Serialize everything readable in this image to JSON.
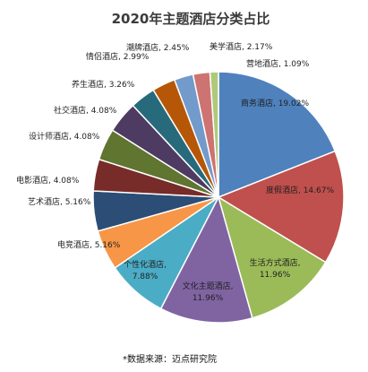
{
  "chart_data": {
    "type": "pie",
    "title": "2020年主题酒店分类占比",
    "source_note": "*数据来源：迈点研究院",
    "slices": [
      {
        "label": "商务酒店",
        "value": 19.02,
        "value_text": "19.02%",
        "color": "#4f81bd"
      },
      {
        "label": "度假酒店",
        "value": 14.67,
        "value_text": "14.67%",
        "color": "#c0504d"
      },
      {
        "label": "生活方式酒店",
        "value": 11.96,
        "value_text": "11.96%",
        "color": "#9bbb59"
      },
      {
        "label": "文化主题酒店",
        "value": 11.96,
        "value_text": "11.96%",
        "color": "#8064a2"
      },
      {
        "label": "个性化酒店",
        "value": 7.88,
        "value_text": "7.88%",
        "color": "#4bacc6"
      },
      {
        "label": "电竞酒店",
        "value": 5.16,
        "value_text": "5.16%",
        "color": "#f79646"
      },
      {
        "label": "艺术酒店",
        "value": 5.16,
        "value_text": "5.16%",
        "color": "#2c4d75"
      },
      {
        "label": "电影酒店",
        "value": 4.08,
        "value_text": "4.08%",
        "color": "#772c2a"
      },
      {
        "label": "设计师酒店",
        "value": 4.08,
        "value_text": "4.08%",
        "color": "#5f7530"
      },
      {
        "label": "社交酒店",
        "value": 4.08,
        "value_text": "4.08%",
        "color": "#4d3b62"
      },
      {
        "label": "养生酒店",
        "value": 3.26,
        "value_text": "3.26%",
        "color": "#276a7c"
      },
      {
        "label": "情侣酒店",
        "value": 2.99,
        "value_text": "2.99%",
        "color": "#b65708"
      },
      {
        "label": "潮牌酒店",
        "value": 2.45,
        "value_text": "2.45%",
        "color": "#729aca"
      },
      {
        "label": "美学酒店",
        "value": 2.17,
        "value_text": "2.17%",
        "color": "#cd7371"
      },
      {
        "label": "营地酒店",
        "value": 1.09,
        "value_text": "1.09%",
        "color": "#afc97a"
      }
    ]
  }
}
